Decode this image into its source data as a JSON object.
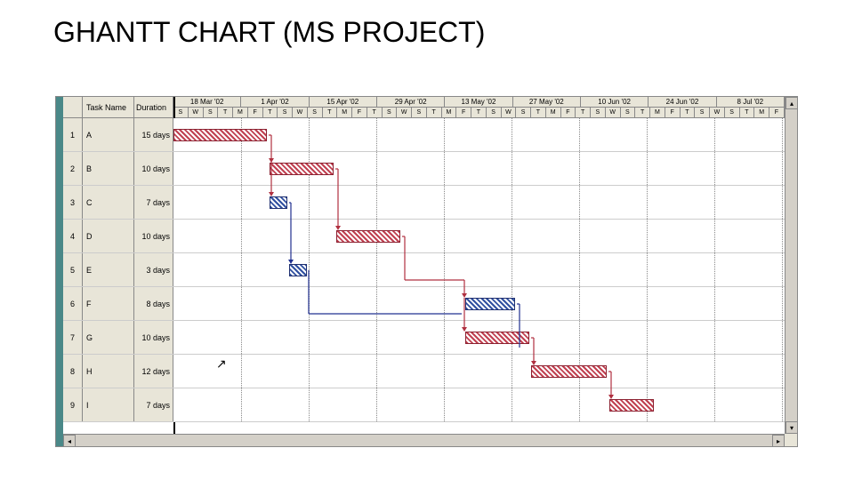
{
  "title": "GHANTT CHART (MS PROJECT)",
  "columns": {
    "num": "",
    "task": "Task Name",
    "dur": "Duration"
  },
  "timeline": {
    "periods": [
      "18 Mar '02",
      "1 Apr '02",
      "15 Apr '02",
      "29 Apr '02",
      "13 May '02",
      "27 May '02",
      "10 Jun '02",
      "24 Jun '02",
      "8 Jul '02"
    ],
    "sub_pattern": [
      "S",
      "W",
      "S",
      "T",
      "M",
      "F",
      "T",
      "S",
      "W",
      "S",
      "T",
      "M",
      "F",
      "T",
      "S",
      "W",
      "S",
      "T",
      "M",
      "F",
      "T",
      "S",
      "W",
      "S",
      "T",
      "M",
      "F",
      "T",
      "S",
      "W",
      "S",
      "T",
      "M",
      "F",
      "T",
      "S",
      "W",
      "S",
      "T",
      "M",
      "F"
    ]
  },
  "tasks": [
    {
      "num": "1",
      "name": "A",
      "dur": "15 days",
      "color": "red",
      "start": 0,
      "len": 105
    },
    {
      "num": "2",
      "name": "B",
      "dur": "10 days",
      "color": "red",
      "start": 108,
      "len": 72
    },
    {
      "num": "3",
      "name": "C",
      "dur": "7 days",
      "color": "blue",
      "start": 108,
      "len": 20
    },
    {
      "num": "4",
      "name": "D",
      "dur": "10 days",
      "color": "red",
      "start": 183,
      "len": 72
    },
    {
      "num": "5",
      "name": "E",
      "dur": "3 days",
      "color": "blue",
      "start": 130,
      "len": 20
    },
    {
      "num": "6",
      "name": "F",
      "dur": "8 days",
      "color": "blue",
      "start": 328,
      "len": 56
    },
    {
      "num": "7",
      "name": "G",
      "dur": "10 days",
      "color": "red",
      "start": 328,
      "len": 72
    },
    {
      "num": "8",
      "name": "H",
      "dur": "12 days",
      "color": "red",
      "start": 402,
      "len": 85
    },
    {
      "num": "9",
      "name": "I",
      "dur": "7 days",
      "color": "red",
      "start": 490,
      "len": 50
    }
  ],
  "vgrid_positions": [
    0,
    76,
    152,
    228,
    304,
    380,
    456,
    532,
    608,
    684
  ],
  "colors": {
    "bg": "#e8e5d8",
    "stripe": "#4a8888",
    "red_bar": "#c04050",
    "blue_bar": "#3050a0",
    "link_red": "#b03040",
    "link_blue": "#203090",
    "grid": "#888888"
  },
  "cursor_glyph": "↖"
}
